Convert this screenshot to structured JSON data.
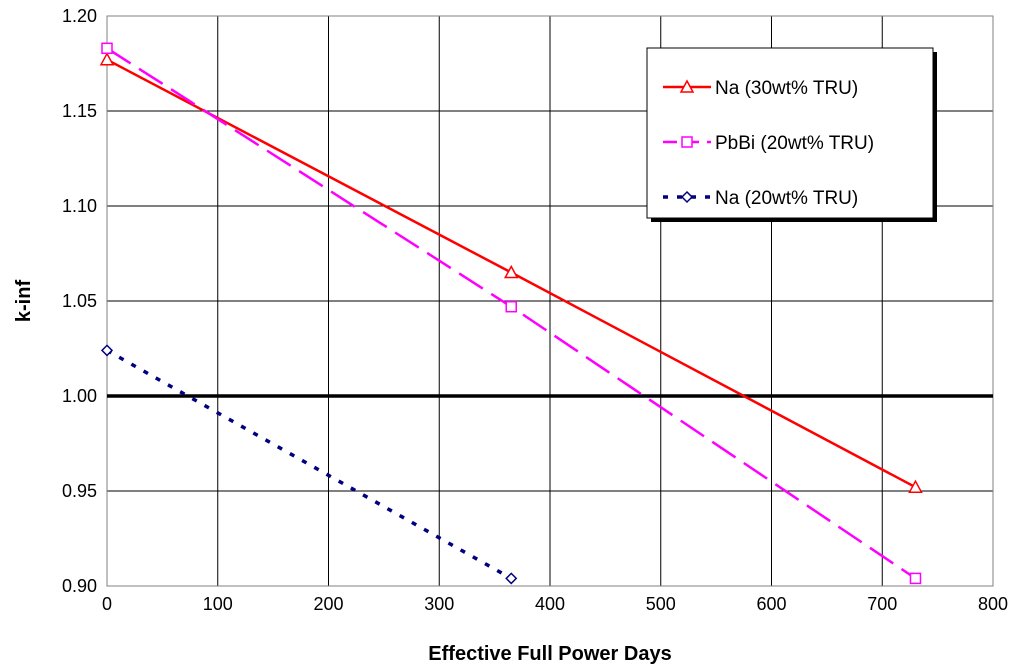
{
  "chart_data": {
    "type": "line",
    "xlabel": "Effective Full Power Days",
    "ylabel": "k-inf",
    "xlim": [
      0,
      800
    ],
    "ylim": [
      0.9,
      1.2
    ],
    "xticks": [
      "0",
      "100",
      "200",
      "300",
      "400",
      "500",
      "600",
      "700",
      "800"
    ],
    "yticks": [
      "0.90",
      "0.95",
      "1.00",
      "1.05",
      "1.10",
      "1.15",
      "1.20"
    ],
    "grid": true,
    "legend_position": "top-right",
    "reference_line": {
      "y": 1.0,
      "color": "#000000"
    },
    "series": [
      {
        "name": "Na (30wt% TRU)",
        "x": [
          0,
          365,
          730
        ],
        "y": [
          1.177,
          1.065,
          0.952
        ],
        "color": "#ff0000",
        "marker": "triangle",
        "dash": "solid"
      },
      {
        "name": "PbBi (20wt% TRU)",
        "x": [
          0,
          365,
          730
        ],
        "y": [
          1.183,
          1.047,
          0.904
        ],
        "color": "#ff00ff",
        "marker": "square",
        "dash": "long-dash"
      },
      {
        "name": "Na (20wt% TRU)",
        "x": [
          0,
          365
        ],
        "y": [
          1.024,
          0.904
        ],
        "color": "#000080",
        "marker": "diamond",
        "dash": "dotted"
      }
    ]
  }
}
